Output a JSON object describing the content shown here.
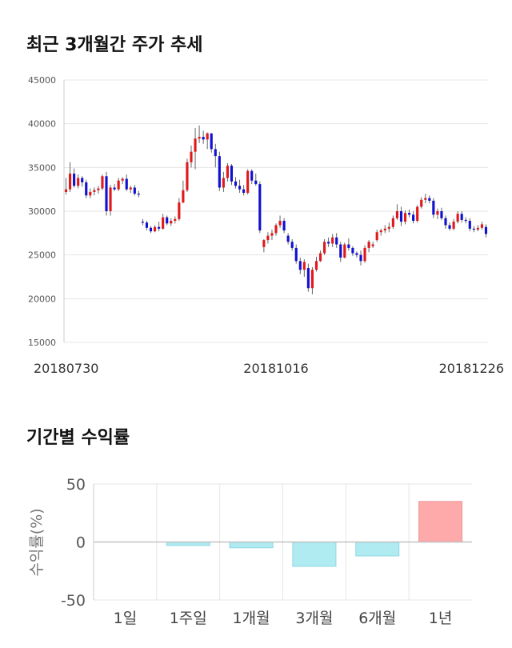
{
  "sections": {
    "candle_title": "최근 3개월간 주가 추세",
    "returns_title": "기간별 수익률"
  },
  "chart_data": [
    {
      "type": "candlestick",
      "title": "최근 3개월간 주가 추세",
      "ylim": [
        15000,
        45000
      ],
      "yticks": [
        15000,
        20000,
        25000,
        30000,
        35000,
        40000,
        45000
      ],
      "xtick_labels": [
        "20180730",
        "20181016",
        "20181226"
      ],
      "xtick_index": [
        0,
        52,
        104
      ],
      "grid": true,
      "colors": {
        "up": "#e0191b",
        "down": "#1010d0",
        "wick": "#666666",
        "grid": "#e6e6e6"
      },
      "candles": [
        [
          32200,
          33800,
          31900,
          32500
        ],
        [
          32500,
          35600,
          32200,
          34300
        ],
        [
          34300,
          34900,
          32700,
          32900
        ],
        [
          32900,
          34200,
          32600,
          33800
        ],
        [
          33800,
          34000,
          32800,
          33300
        ],
        [
          33300,
          33600,
          31500,
          31800
        ],
        [
          31800,
          32600,
          31500,
          32200
        ],
        [
          32200,
          32700,
          31800,
          32400
        ],
        [
          32400,
          32900,
          32000,
          32600
        ],
        [
          32600,
          34200,
          32400,
          34000
        ],
        [
          34000,
          34500,
          29500,
          30000
        ],
        [
          30000,
          33000,
          29500,
          32700
        ],
        [
          32700,
          33100,
          32300,
          32500
        ],
        [
          32500,
          33800,
          32300,
          33500
        ],
        [
          33500,
          33900,
          33100,
          33700
        ],
        [
          33700,
          34200,
          32300,
          32500
        ],
        [
          32500,
          32900,
          32100,
          32700
        ],
        [
          32700,
          33000,
          31800,
          32000
        ],
        [
          32000,
          32300,
          31600,
          31900
        ],
        [
          28800,
          29100,
          28400,
          28700
        ],
        [
          28700,
          28900,
          27800,
          28100
        ],
        [
          28100,
          28300,
          27500,
          27700
        ],
        [
          27700,
          28400,
          27600,
          28200
        ],
        [
          28200,
          28800,
          27700,
          28000
        ],
        [
          28000,
          29700,
          27900,
          29300
        ],
        [
          29300,
          29500,
          28400,
          28600
        ],
        [
          28600,
          29200,
          28300,
          28900
        ],
        [
          28900,
          29400,
          28600,
          29100
        ],
        [
          29100,
          31500,
          28900,
          31000
        ],
        [
          31000,
          33500,
          30900,
          32400
        ],
        [
          32400,
          36000,
          32200,
          35600
        ],
        [
          35600,
          37500,
          35000,
          36800
        ],
        [
          36800,
          39500,
          34800,
          38300
        ],
        [
          38300,
          39800,
          37800,
          38500
        ],
        [
          38500,
          39200,
          37700,
          38200
        ],
        [
          38200,
          39000,
          37100,
          38900
        ],
        [
          38900,
          38900,
          36700,
          37100
        ],
        [
          37100,
          37700,
          35000,
          36300
        ],
        [
          36300,
          36800,
          32300,
          32700
        ],
        [
          32700,
          34500,
          32200,
          33800
        ],
        [
          33800,
          35500,
          33400,
          35200
        ],
        [
          35200,
          35400,
          33000,
          33400
        ],
        [
          33400,
          33900,
          32600,
          32900
        ],
        [
          32900,
          33600,
          32100,
          32500
        ],
        [
          32500,
          33000,
          31800,
          32100
        ],
        [
          32100,
          34800,
          31900,
          34600
        ],
        [
          34600,
          34800,
          33100,
          33500
        ],
        [
          33500,
          34300,
          32900,
          33100
        ],
        [
          33100,
          33400,
          27500,
          27800
        ],
        [
          25900,
          26800,
          25300,
          26700
        ],
        [
          26700,
          27600,
          26300,
          27200
        ],
        [
          27200,
          27900,
          26700,
          27500
        ],
        [
          27500,
          28600,
          27200,
          28400
        ],
        [
          28400,
          29500,
          28100,
          28900
        ],
        [
          28900,
          29200,
          27500,
          27800
        ],
        [
          27200,
          27500,
          26200,
          26500
        ],
        [
          26500,
          26800,
          25500,
          25800
        ],
        [
          25800,
          26200,
          24000,
          24300
        ],
        [
          24300,
          24700,
          22800,
          23300
        ],
        [
          23300,
          24500,
          22500,
          24200
        ],
        [
          23500,
          24000,
          20800,
          21200
        ],
        [
          21200,
          23600,
          20500,
          23300
        ],
        [
          23300,
          24800,
          23100,
          24300
        ],
        [
          24300,
          25500,
          24200,
          25200
        ],
        [
          25200,
          26800,
          25000,
          26500
        ],
        [
          26500,
          27000,
          25900,
          26300
        ],
        [
          26300,
          27400,
          25900,
          27000
        ],
        [
          27000,
          27500,
          25800,
          26200
        ],
        [
          26200,
          26500,
          24200,
          24700
        ],
        [
          24700,
          26400,
          24600,
          26200
        ],
        [
          26200,
          26900,
          25500,
          25800
        ],
        [
          25800,
          26000,
          24900,
          25200
        ],
        [
          25200,
          25400,
          24700,
          25000
        ],
        [
          25000,
          25500,
          23800,
          24300
        ],
        [
          24300,
          26100,
          24100,
          25800
        ],
        [
          25800,
          26700,
          25300,
          26500
        ],
        [
          26000,
          26500,
          25800,
          26200
        ],
        [
          26700,
          27900,
          26500,
          27600
        ],
        [
          27600,
          28000,
          27200,
          27800
        ],
        [
          27800,
          28400,
          27500,
          28000
        ],
        [
          28000,
          28700,
          27600,
          28200
        ],
        [
          28200,
          29500,
          28000,
          29200
        ],
        [
          29200,
          30800,
          29000,
          30000
        ],
        [
          30000,
          30500,
          28300,
          28800
        ],
        [
          28800,
          30100,
          28500,
          29800
        ],
        [
          29800,
          30200,
          29300,
          29600
        ],
        [
          29600,
          30000,
          28600,
          28900
        ],
        [
          28900,
          30700,
          28700,
          30500
        ],
        [
          30500,
          31600,
          30300,
          31300
        ],
        [
          31300,
          32000,
          30900,
          31500
        ],
        [
          31500,
          31800,
          30900,
          31200
        ],
        [
          31200,
          31500,
          29200,
          29600
        ],
        [
          29600,
          30300,
          29100,
          30000
        ],
        [
          30000,
          30400,
          29000,
          29200
        ],
        [
          29200,
          29500,
          28000,
          28400
        ],
        [
          28400,
          28700,
          27800,
          28000
        ],
        [
          28000,
          29100,
          27800,
          28800
        ],
        [
          28800,
          30000,
          28600,
          29700
        ],
        [
          29700,
          30000,
          28700,
          29000
        ],
        [
          29000,
          29300,
          28600,
          28900
        ],
        [
          28900,
          29200,
          27700,
          28000
        ],
        [
          28000,
          28300,
          27600,
          27900
        ],
        [
          27900,
          28400,
          27700,
          28100
        ],
        [
          28100,
          28800,
          27900,
          28500
        ],
        [
          28200,
          28500,
          27000,
          27400
        ]
      ]
    },
    {
      "type": "bar",
      "categories": [
        "1일",
        "1주일",
        "1개월",
        "3개월",
        "6개월",
        "1년"
      ],
      "values": [
        0,
        -3,
        -5,
        -21,
        -12,
        35
      ],
      "ylabel": "수익률(%)",
      "ylim": [
        -50,
        50
      ],
      "yticks": [
        -50,
        0,
        50
      ],
      "grid": true,
      "colors": {
        "positive": "#ffaaaa",
        "positive_stroke": "#e89a9a",
        "negative": "#b0ebf2",
        "negative_stroke": "#8fd7e2",
        "zero_line": "#b8b8b8",
        "grid": "#e6e6e6"
      }
    }
  ]
}
